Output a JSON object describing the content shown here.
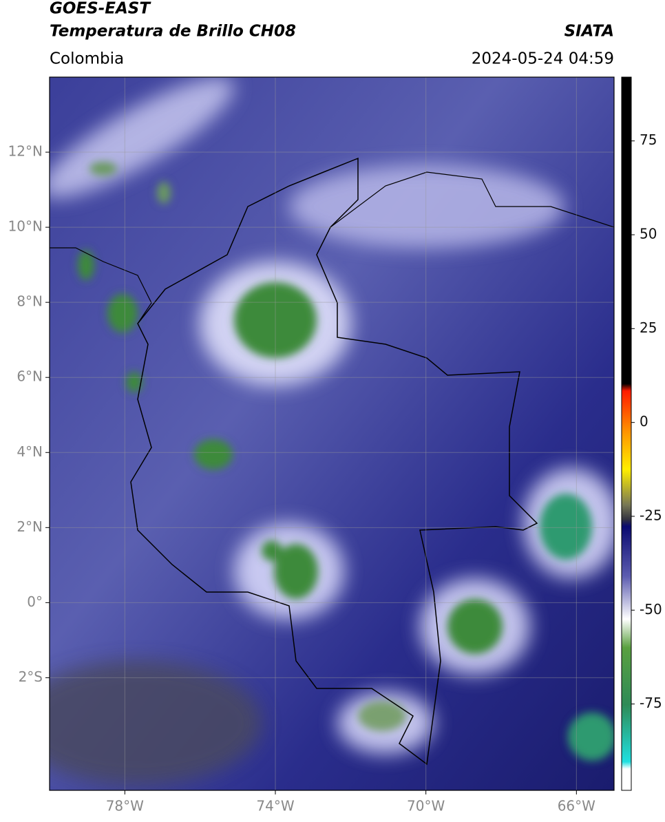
{
  "header": {
    "title": "GOES-EAST",
    "subtitle": "Temperatura de Brillo CH08",
    "source": "SIATA",
    "region": "Colombia",
    "datetime": "2024-05-24 04:59"
  },
  "map": {
    "xlim": [
      -80,
      -65
    ],
    "ylim": [
      -5,
      14
    ],
    "xticks": [
      {
        "value": -78,
        "label": "78°W"
      },
      {
        "value": -74,
        "label": "74°W"
      },
      {
        "value": -70,
        "label": "70°W"
      },
      {
        "value": -66,
        "label": "66°W"
      }
    ],
    "yticks": [
      {
        "value": 12,
        "label": "12°N"
      },
      {
        "value": 10,
        "label": "10°N"
      },
      {
        "value": 8,
        "label": "8°N"
      },
      {
        "value": 6,
        "label": "6°N"
      },
      {
        "value": 4,
        "label": "4°N"
      },
      {
        "value": 2,
        "label": "2°N"
      },
      {
        "value": 0,
        "label": "0°"
      },
      {
        "value": -2,
        "label": "2°S"
      }
    ]
  },
  "colorbar": {
    "lim": [
      -98,
      92
    ],
    "ticks": [
      75,
      50,
      25,
      0,
      -25,
      -50,
      -75
    ]
  }
}
